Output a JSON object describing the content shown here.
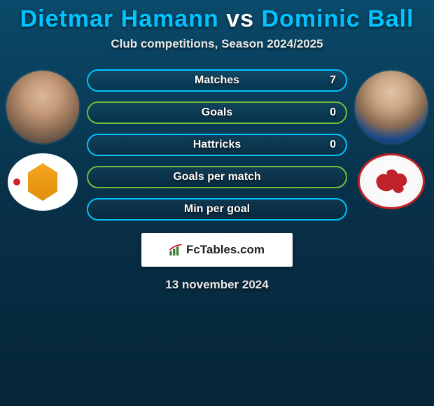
{
  "title": {
    "player1": "Dietmar Hamann",
    "vs": "vs",
    "player2": "Dominic Ball",
    "color_player": "#00c3ff",
    "color_vs": "#ffffff"
  },
  "subtitle": "Club competitions, Season 2024/2025",
  "bars": [
    {
      "label": "Matches",
      "left": "",
      "right": "7",
      "border_color": "#00c3ff"
    },
    {
      "label": "Goals",
      "left": "",
      "right": "0",
      "border_color": "#6fbf3a"
    },
    {
      "label": "Hattricks",
      "left": "",
      "right": "0",
      "border_color": "#00c3ff"
    },
    {
      "label": "Goals per match",
      "left": "",
      "right": "",
      "border_color": "#6fbf3a"
    },
    {
      "label": "Min per goal",
      "left": "",
      "right": "",
      "border_color": "#00c3ff"
    }
  ],
  "footer_brand": "FcTables.com",
  "date_text": "13 november 2024",
  "team_left_name": "mk-dons-logo",
  "team_right_name": "leyton-orient-logo",
  "dragon_color": "#c0222a"
}
